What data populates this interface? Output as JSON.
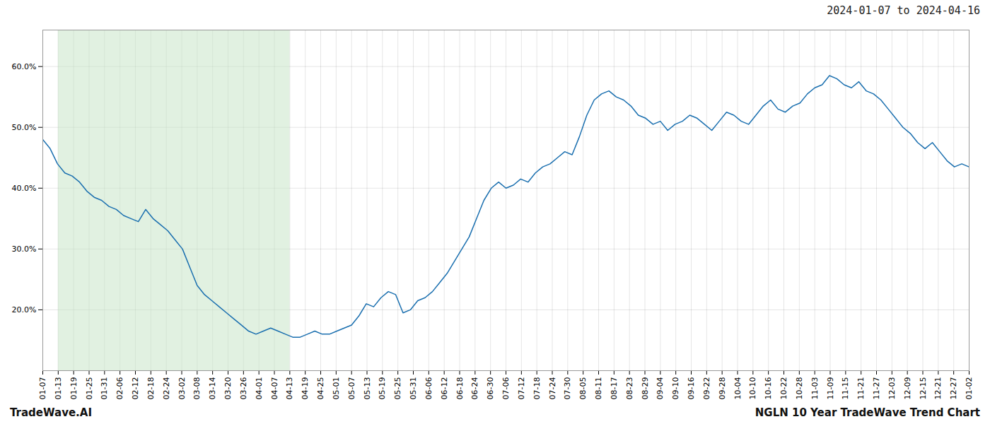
{
  "chart_data": {
    "type": "line",
    "title": "2024-01-07 to 2024-04-16",
    "annotations": [
      "TradeWave.AI",
      "NGLN 10 Year TradeWave Trend Chart"
    ],
    "color": "#1a6faf",
    "grid": true,
    "ylim": [
      10,
      66
    ],
    "yticks": [
      {
        "value": 20.0,
        "label": "20.0%"
      },
      {
        "value": 30.0,
        "label": "30.0%"
      },
      {
        "value": 40.0,
        "label": "40.0%"
      },
      {
        "value": 50.0,
        "label": "50.0%"
      },
      {
        "value": 60.0,
        "label": "60.0%"
      }
    ],
    "xlim": [
      0,
      126
    ],
    "xticks": [
      {
        "value": 0,
        "label": "01-07"
      },
      {
        "value": 2.1,
        "label": "01-13"
      },
      {
        "value": 4.2,
        "label": "01-19"
      },
      {
        "value": 6.3,
        "label": "01-25"
      },
      {
        "value": 8.4,
        "label": "01-31"
      },
      {
        "value": 10.5,
        "label": "02-06"
      },
      {
        "value": 12.6,
        "label": "02-12"
      },
      {
        "value": 14.7,
        "label": "02-18"
      },
      {
        "value": 16.8,
        "label": "02-24"
      },
      {
        "value": 18.9,
        "label": "03-02"
      },
      {
        "value": 21,
        "label": "03-08"
      },
      {
        "value": 23.1,
        "label": "03-14"
      },
      {
        "value": 25.2,
        "label": "03-20"
      },
      {
        "value": 27.3,
        "label": "03-26"
      },
      {
        "value": 29.4,
        "label": "04-01"
      },
      {
        "value": 31.5,
        "label": "04-07"
      },
      {
        "value": 33.6,
        "label": "04-13"
      },
      {
        "value": 35.7,
        "label": "04-19"
      },
      {
        "value": 37.8,
        "label": "04-25"
      },
      {
        "value": 39.9,
        "label": "05-01"
      },
      {
        "value": 42,
        "label": "05-07"
      },
      {
        "value": 44.1,
        "label": "05-13"
      },
      {
        "value": 46.2,
        "label": "05-19"
      },
      {
        "value": 48.3,
        "label": "05-25"
      },
      {
        "value": 50.4,
        "label": "05-31"
      },
      {
        "value": 52.5,
        "label": "06-06"
      },
      {
        "value": 54.6,
        "label": "06-12"
      },
      {
        "value": 56.7,
        "label": "06-18"
      },
      {
        "value": 58.8,
        "label": "06-24"
      },
      {
        "value": 60.9,
        "label": "06-30"
      },
      {
        "value": 63,
        "label": "07-06"
      },
      {
        "value": 65.1,
        "label": "07-12"
      },
      {
        "value": 67.2,
        "label": "07-18"
      },
      {
        "value": 69.3,
        "label": "07-24"
      },
      {
        "value": 71.4,
        "label": "07-30"
      },
      {
        "value": 73.5,
        "label": "08-05"
      },
      {
        "value": 75.6,
        "label": "08-11"
      },
      {
        "value": 77.7,
        "label": "08-17"
      },
      {
        "value": 79.8,
        "label": "08-23"
      },
      {
        "value": 81.9,
        "label": "08-29"
      },
      {
        "value": 84,
        "label": "09-04"
      },
      {
        "value": 86.1,
        "label": "09-10"
      },
      {
        "value": 88.2,
        "label": "09-16"
      },
      {
        "value": 90.3,
        "label": "09-22"
      },
      {
        "value": 92.4,
        "label": "09-28"
      },
      {
        "value": 94.5,
        "label": "10-04"
      },
      {
        "value": 96.6,
        "label": "10-10"
      },
      {
        "value": 98.7,
        "label": "10-16"
      },
      {
        "value": 100.8,
        "label": "10-22"
      },
      {
        "value": 102.9,
        "label": "10-28"
      },
      {
        "value": 105,
        "label": "11-03"
      },
      {
        "value": 107.1,
        "label": "11-09"
      },
      {
        "value": 109.2,
        "label": "11-15"
      },
      {
        "value": 111.3,
        "label": "11-21"
      },
      {
        "value": 113.4,
        "label": "11-27"
      },
      {
        "value": 115.5,
        "label": "12-03"
      },
      {
        "value": 117.6,
        "label": "12-09"
      },
      {
        "value": 119.7,
        "label": "12-15"
      },
      {
        "value": 121.8,
        "label": "12-21"
      },
      {
        "value": 123.9,
        "label": "12-27"
      },
      {
        "value": 126,
        "label": "01-02"
      }
    ],
    "shaded_range": {
      "start": "01-13",
      "end": "04-13",
      "color": "#c8e6c9"
    },
    "values": [
      48.0,
      46.5,
      44.0,
      42.5,
      42.0,
      41.0,
      39.5,
      38.5,
      38.0,
      37.0,
      36.5,
      35.5,
      35.0,
      34.5,
      36.5,
      35.0,
      34.0,
      33.0,
      31.5,
      30.0,
      27.0,
      24.0,
      22.5,
      21.5,
      20.5,
      19.5,
      18.5,
      17.5,
      16.5,
      16.0,
      16.5,
      17.0,
      16.5,
      16.0,
      15.5,
      15.5,
      16.0,
      16.5,
      16.0,
      16.0,
      16.5,
      17.0,
      17.5,
      19.0,
      21.0,
      20.5,
      22.0,
      23.0,
      22.5,
      19.5,
      20.0,
      21.5,
      22.0,
      23.0,
      24.5,
      26.0,
      28.0,
      30.0,
      32.0,
      35.0,
      38.0,
      40.0,
      41.0,
      40.0,
      40.5,
      41.5,
      41.0,
      42.5,
      43.5,
      44.0,
      45.0,
      46.0,
      45.5,
      48.5,
      52.0,
      54.5,
      55.5,
      56.0,
      55.0,
      54.5,
      53.5,
      52.0,
      51.5,
      50.5,
      51.0,
      49.5,
      50.5,
      51.0,
      52.0,
      51.5,
      50.5,
      49.5,
      51.0,
      52.5,
      52.0,
      51.0,
      50.5,
      52.0,
      53.5,
      54.5,
      53.0,
      52.5,
      53.5,
      54.0,
      55.5,
      56.5,
      57.0,
      58.5,
      58.0,
      57.0,
      56.5,
      57.5,
      56.0,
      55.5,
      54.5,
      53.0,
      51.5,
      50.0,
      49.0,
      47.5,
      46.5,
      47.5,
      46.0,
      44.5,
      43.5,
      44.0,
      43.5
    ]
  }
}
